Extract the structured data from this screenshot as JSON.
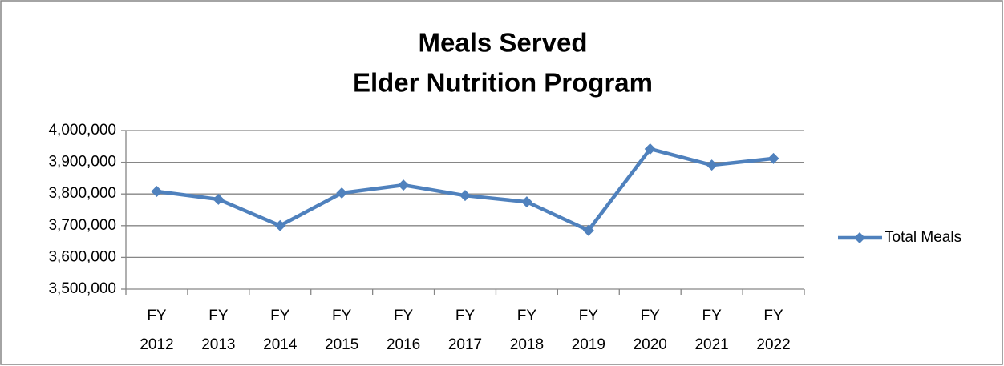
{
  "chart_data": {
    "type": "line",
    "title": "Meals Served",
    "subtitle": "Elder Nutrition Program",
    "categories": [
      "FY 2012",
      "FY 2013",
      "FY 2014",
      "FY 2015",
      "FY 2016",
      "FY 2017",
      "FY 2018",
      "FY 2019",
      "FY 2020",
      "FY 2021",
      "FY 2022"
    ],
    "series": [
      {
        "name": "Total Meals",
        "color": "#4f81bd",
        "values": [
          3808000,
          3783000,
          3700000,
          3803000,
          3828000,
          3795000,
          3775000,
          3685000,
          3942000,
          3891000,
          3912000
        ]
      }
    ],
    "ylim": [
      3500000,
      4000000
    ],
    "yticks": [
      {
        "value": 3500000,
        "label": "3,500,000"
      },
      {
        "value": 3600000,
        "label": "3,600,000"
      },
      {
        "value": 3700000,
        "label": "3,700,000"
      },
      {
        "value": 3800000,
        "label": "3,800,000"
      },
      {
        "value": 3900000,
        "label": "3,900,000"
      },
      {
        "value": 4000000,
        "label": "4,000,000"
      }
    ],
    "grid": true,
    "legend": "right"
  }
}
